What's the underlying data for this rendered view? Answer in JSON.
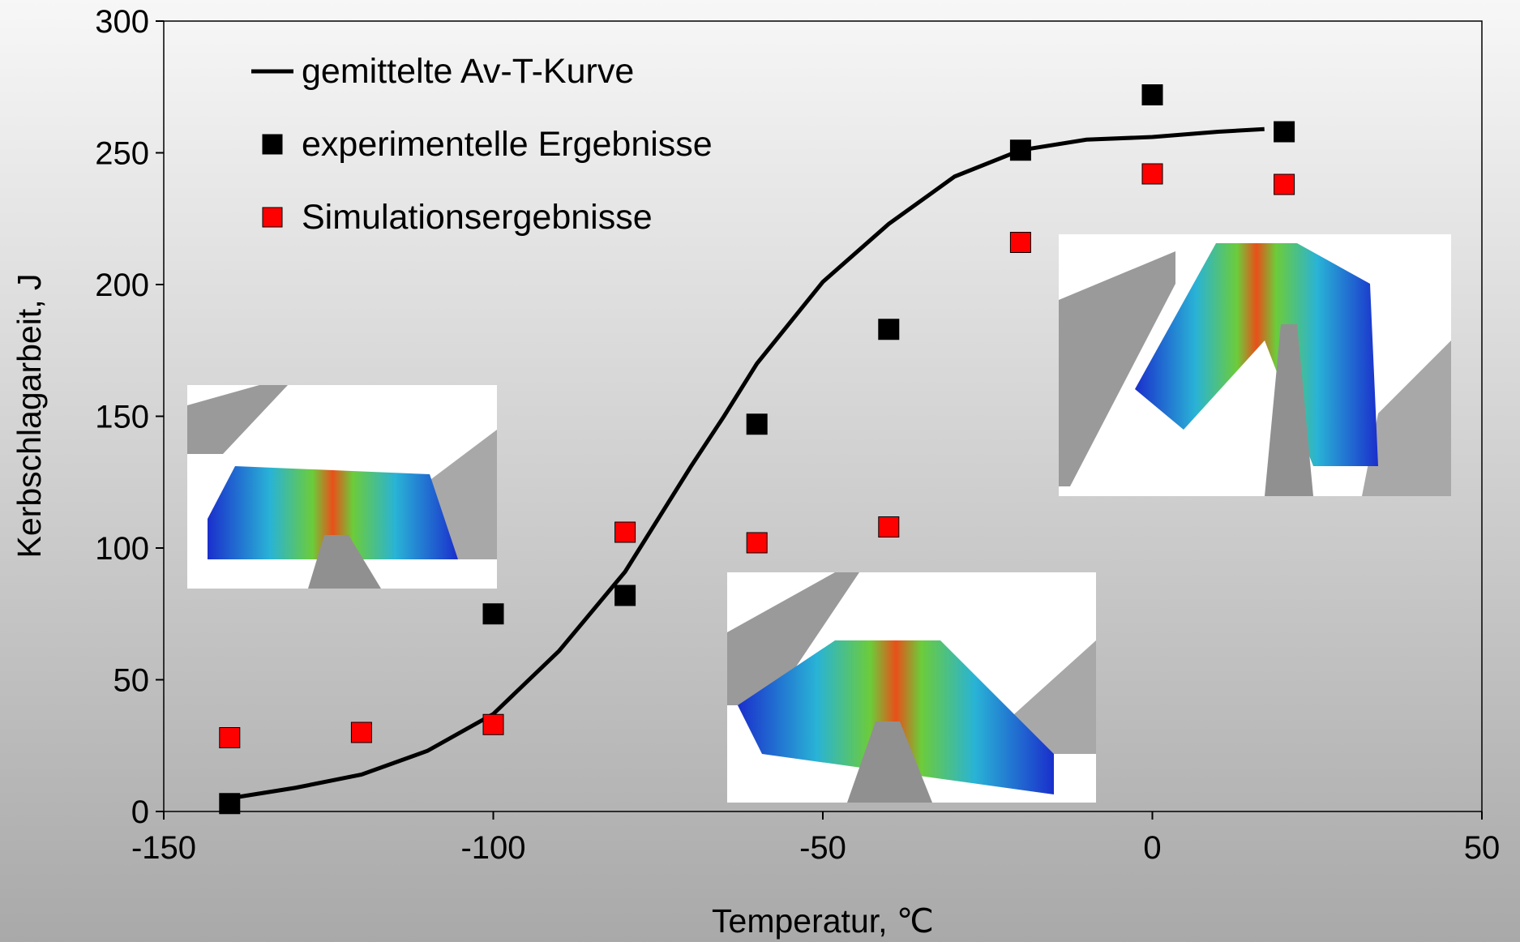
{
  "chart_data": {
    "type": "scatter",
    "x_label": "Temperatur, ℃",
    "y_label": "Kerbschlagarbeit, J",
    "xlim": [
      -150,
      50
    ],
    "ylim": [
      0,
      300
    ],
    "xticks": [
      -150,
      -100,
      -50,
      0,
      50
    ],
    "yticks": [
      0,
      50,
      100,
      150,
      200,
      250,
      300
    ],
    "grid": false,
    "legend": "upper left",
    "series": [
      {
        "name": "gemittelte Av-T-Kurve",
        "kind": "line",
        "color": "#000000",
        "x": [
          -140,
          -130,
          -120,
          -110,
          -100,
          -90,
          -80,
          -70,
          -65,
          -60,
          -50,
          -40,
          -30,
          -20,
          -10,
          0,
          10,
          17
        ],
        "values": [
          5,
          9,
          14,
          23,
          37,
          61,
          91,
          131,
          150,
          170,
          201,
          223,
          241,
          251,
          255,
          256,
          258,
          259
        ]
      },
      {
        "name": "experimentelle Ergebnisse",
        "kind": "marker",
        "color": "#000000",
        "x": [
          -140,
          -100,
          -80,
          -60,
          -40,
          -20,
          0,
          20
        ],
        "values": [
          3,
          75,
          82,
          147,
          183,
          251,
          272,
          258
        ]
      },
      {
        "name": "Simulationsergebnisse",
        "kind": "marker",
        "color": "#ff0000",
        "x": [
          -140,
          -120,
          -100,
          -80,
          -60,
          -40,
          -20,
          0,
          20
        ],
        "values": [
          28,
          30,
          33,
          106,
          102,
          108,
          216,
          242,
          238
        ]
      }
    ]
  }
}
